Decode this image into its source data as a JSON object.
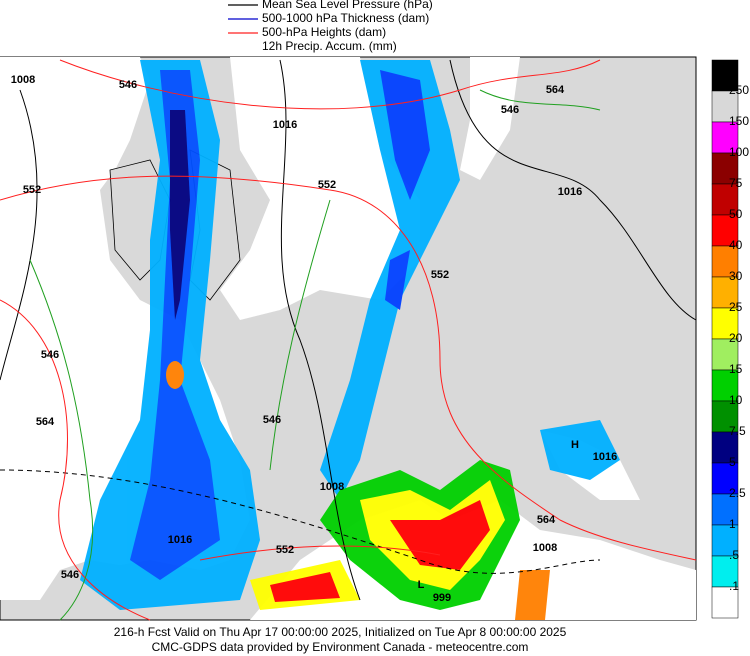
{
  "legend": [
    {
      "name": "Mean Sea Level Pressure (hPa)",
      "color": "#000000"
    },
    {
      "name": "500-1000 hPa Thickness (dam)",
      "color": "#0000cc"
    },
    {
      "name": "500-hPa Heights (dam)",
      "color": "#ff2020"
    }
  ],
  "legend_note": "12h Precip. Accum. (mm)",
  "colorbar": {
    "labels": [
      "250",
      "150",
      "100",
      "75",
      "50",
      "40",
      "30",
      "25",
      "20",
      "15",
      "10",
      "7.5",
      "5",
      "2.5",
      "1",
      ".5",
      ".1"
    ],
    "colors": [
      "#000000",
      "#d8d8d8",
      "#ff00ff",
      "#8b0000",
      "#c00000",
      "#ff0000",
      "#ff7f00",
      "#ffb000",
      "#ffff00",
      "#a0ee60",
      "#00d000",
      "#009000",
      "#000080",
      "#0000ff",
      "#0070ff",
      "#00b0ff",
      "#00eeee",
      "#ffffff"
    ]
  },
  "map_labels": [
    "1008",
    "546",
    "552",
    "1016",
    "552",
    "546",
    "564",
    "1016",
    "552",
    "546",
    "564",
    "546",
    "1008",
    "H",
    "1016",
    "552",
    "564",
    "1008",
    "L",
    "999",
    "546",
    "1016"
  ],
  "footer": [
    "216-h Fcst Valid on Thu Apr 17 00:00:00 2025, Initialized on Tue Apr  8 00:00:00 2025",
    "CMC-GDPS data provided by Environment Canada - meteocentre.com"
  ]
}
